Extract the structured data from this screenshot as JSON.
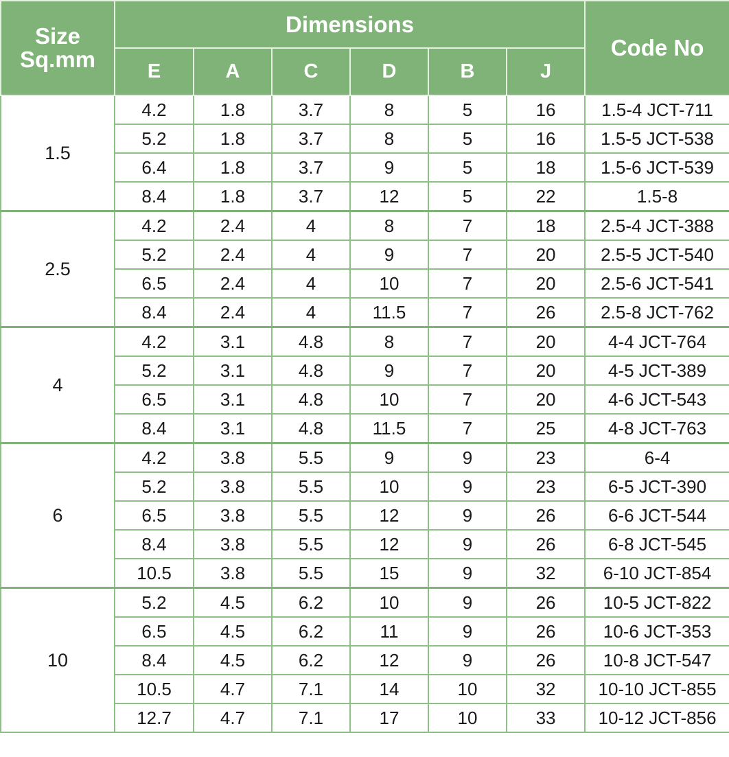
{
  "header": {
    "size": "Size Sq.mm",
    "dimensions": "Dimensions",
    "code": "Code No",
    "columns": [
      "E",
      "A",
      "C",
      "D",
      "B",
      "J"
    ]
  },
  "colors": {
    "header_bg": "#80b377",
    "border": "#8cc084"
  },
  "groups": [
    {
      "size": "1.5",
      "rows": [
        [
          "4.2",
          "1.8",
          "3.7",
          "8",
          "5",
          "16",
          "1.5-4 JCT-711"
        ],
        [
          "5.2",
          "1.8",
          "3.7",
          "8",
          "5",
          "16",
          "1.5-5 JCT-538"
        ],
        [
          "6.4",
          "1.8",
          "3.7",
          "9",
          "5",
          "18",
          "1.5-6 JCT-539"
        ],
        [
          "8.4",
          "1.8",
          "3.7",
          "12",
          "5",
          "22",
          "1.5-8"
        ]
      ]
    },
    {
      "size": "2.5",
      "rows": [
        [
          "4.2",
          "2.4",
          "4",
          "8",
          "7",
          "18",
          "2.5-4 JCT-388"
        ],
        [
          "5.2",
          "2.4",
          "4",
          "9",
          "7",
          "20",
          "2.5-5 JCT-540"
        ],
        [
          "6.5",
          "2.4",
          "4",
          "10",
          "7",
          "20",
          "2.5-6 JCT-541"
        ],
        [
          "8.4",
          "2.4",
          "4",
          "11.5",
          "7",
          "26",
          "2.5-8 JCT-762"
        ]
      ]
    },
    {
      "size": "4",
      "rows": [
        [
          "4.2",
          "3.1",
          "4.8",
          "8",
          "7",
          "20",
          "4-4 JCT-764"
        ],
        [
          "5.2",
          "3.1",
          "4.8",
          "9",
          "7",
          "20",
          "4-5 JCT-389"
        ],
        [
          "6.5",
          "3.1",
          "4.8",
          "10",
          "7",
          "20",
          "4-6 JCT-543"
        ],
        [
          "8.4",
          "3.1",
          "4.8",
          "11.5",
          "7",
          "25",
          "4-8 JCT-763"
        ]
      ]
    },
    {
      "size": "6",
      "rows": [
        [
          "4.2",
          "3.8",
          "5.5",
          "9",
          "9",
          "23",
          "6-4"
        ],
        [
          "5.2",
          "3.8",
          "5.5",
          "10",
          "9",
          "23",
          "6-5 JCT-390"
        ],
        [
          "6.5",
          "3.8",
          "5.5",
          "12",
          "9",
          "26",
          "6-6 JCT-544"
        ],
        [
          "8.4",
          "3.8",
          "5.5",
          "12",
          "9",
          "26",
          "6-8 JCT-545"
        ],
        [
          "10.5",
          "3.8",
          "5.5",
          "15",
          "9",
          "32",
          "6-10 JCT-854"
        ]
      ]
    },
    {
      "size": "10",
      "rows": [
        [
          "5.2",
          "4.5",
          "6.2",
          "10",
          "9",
          "26",
          "10-5 JCT-822"
        ],
        [
          "6.5",
          "4.5",
          "6.2",
          "11",
          "9",
          "26",
          "10-6 JCT-353"
        ],
        [
          "8.4",
          "4.5",
          "6.2",
          "12",
          "9",
          "26",
          "10-8 JCT-547"
        ],
        [
          "10.5",
          "4.7",
          "7.1",
          "14",
          "10",
          "32",
          "10-10 JCT-855"
        ],
        [
          "12.7",
          "4.7",
          "7.1",
          "17",
          "10",
          "33",
          "10-12 JCT-856"
        ]
      ]
    }
  ]
}
